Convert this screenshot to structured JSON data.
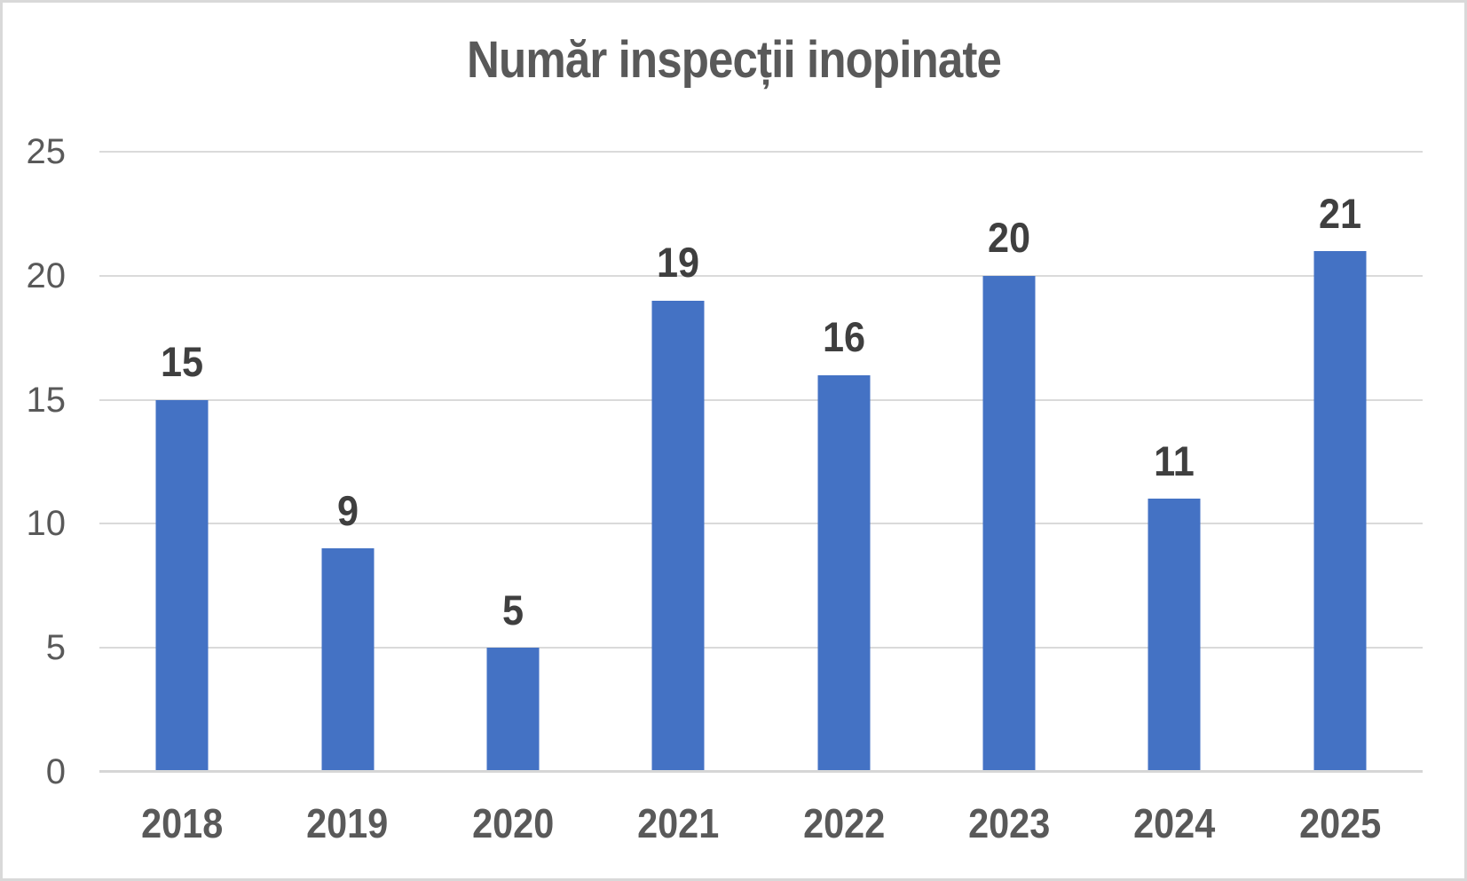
{
  "page": {
    "background": "#ffffff",
    "frame_border_color": "#d9d9d9"
  },
  "chart_data": {
    "type": "bar",
    "title": "Număr inspecții inopinate",
    "categories": [
      "2018",
      "2019",
      "2020",
      "2021",
      "2022",
      "2023",
      "2024",
      "2025"
    ],
    "values": [
      15,
      9,
      5,
      19,
      16,
      20,
      11,
      21
    ],
    "data_labels": [
      "15",
      "9",
      "5",
      "19",
      "16",
      "20",
      "11",
      "21"
    ],
    "xlabel": "",
    "ylabel": "",
    "ylim": [
      0,
      25
    ],
    "yticks": [
      0,
      5,
      10,
      15,
      20,
      25
    ],
    "grid": true,
    "legend_position": "none",
    "colors": {
      "bar": "#4472c4",
      "title_text": "#595959",
      "axis_text": "#595959",
      "data_label_text": "#3f3f3f",
      "gridline": "#dadada",
      "axis_line": "#d6d6d6"
    }
  }
}
